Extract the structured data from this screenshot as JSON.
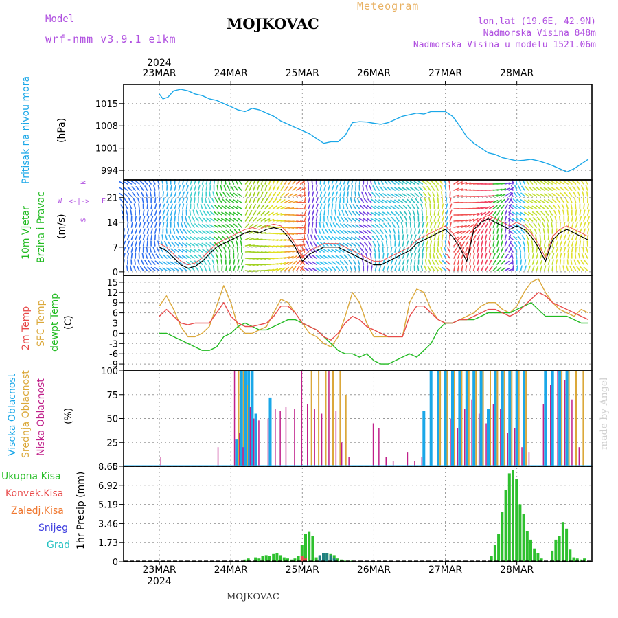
{
  "header": {
    "model_label": "Model",
    "model_name": "wrf-nmm_v3.9.1  e1km",
    "station": "MOJKOVAC",
    "meteogram_label": "Meteogram",
    "lonlat": "lon,lat (19.6E, 42.9N)",
    "elevation": "Nadmorska Visina 848m",
    "model_elevation": "Nadmorska Visina u modelu 1521.06m",
    "footer_station": "MOJKOVAC",
    "credit": "made by Angel"
  },
  "colors": {
    "pressure": "#1aa7e8",
    "wind_label": "#22bb22",
    "wind_dir_label": "#b050e0",
    "temp2m": "#e84a4a",
    "sfc_temp": "#dba83a",
    "dewpoint": "#22bb22",
    "high_cloud": "#1aa7e8",
    "mid_cloud": "#dba83a",
    "low_cloud": "#c0208a",
    "total_precip": "#2ec02e",
    "conv_precip": "#e84a4a",
    "freezing_precip": "#f07830",
    "snow": "#4040e0",
    "graupel": "#20c0c0",
    "header_purple": "#b050e0",
    "header_orange": "#e8b060"
  },
  "chart_data": [
    {
      "type": "line",
      "panel": "pressure",
      "ylabel": "Pritisak na nivou mora",
      "unit": "(hPa)",
      "yticks": [
        994,
        1001,
        1008,
        1015
      ],
      "ylim": [
        991,
        1021
      ],
      "x_days": [
        0,
        0.05,
        0.12,
        0.2,
        0.3,
        0.4,
        0.5,
        0.6,
        0.7,
        0.8,
        0.9,
        1.0,
        1.1,
        1.2,
        1.3,
        1.4,
        1.5,
        1.6,
        1.7,
        1.8,
        1.9,
        2.0,
        2.1,
        2.2,
        2.3,
        2.4,
        2.5,
        2.6,
        2.7,
        2.8,
        2.9,
        3.0,
        3.1,
        3.2,
        3.3,
        3.4,
        3.5,
        3.6,
        3.7,
        3.8,
        3.9,
        4.0,
        4.1,
        4.2,
        4.3,
        4.4,
        4.5,
        4.6,
        4.7,
        4.8,
        4.9,
        5.0,
        5.1,
        5.2,
        5.3,
        5.4,
        5.5,
        5.6,
        5.7,
        5.8,
        5.9,
        6.0
      ],
      "series": [
        {
          "values": [
            1018,
            1016.5,
            1017,
            1019,
            1019.5,
            1019,
            1018,
            1017.5,
            1016.5,
            1016,
            1015,
            1014,
            1013,
            1012.5,
            1013.5,
            1013,
            1012,
            1011,
            1009.5,
            1008.5,
            1007.5,
            1006.5,
            1005.5,
            1004,
            1002.5,
            1003,
            1003,
            1005,
            1009,
            1009.3,
            1009.2,
            1008.8,
            1008.5,
            1009,
            1010,
            1011,
            1011.5,
            1012,
            1011.7,
            1012.5,
            1012.5,
            1012.5,
            1011,
            1008,
            1004.5,
            1002.5,
            1001,
            999.5,
            999,
            998,
            997.5,
            997,
            997.2,
            997.5,
            997,
            996.3,
            995.5,
            994.5,
            993.5,
            994.5,
            996,
            997.5
          ]
        }
      ]
    },
    {
      "type": "line",
      "panel": "wind",
      "ylabel_lines": [
        "10m Vjetar",
        "Brzina i Pravac"
      ],
      "unit": "(m/s)",
      "direction_key": {
        "n": "N",
        "s": "S",
        "w": "W",
        "e": "E"
      },
      "yticks": [
        0,
        7,
        14,
        21
      ],
      "ylim": [
        -1,
        26
      ],
      "x_days": [
        0,
        0.1,
        0.2,
        0.3,
        0.4,
        0.5,
        0.6,
        0.7,
        0.8,
        0.9,
        1.0,
        1.1,
        1.2,
        1.3,
        1.4,
        1.5,
        1.6,
        1.7,
        1.8,
        1.9,
        2.0,
        2.1,
        2.2,
        2.3,
        2.4,
        2.5,
        2.6,
        2.7,
        2.8,
        2.9,
        3.0,
        3.1,
        3.2,
        3.3,
        3.4,
        3.5,
        3.6,
        3.7,
        3.8,
        3.9,
        4.0,
        4.1,
        4.2,
        4.3,
        4.4,
        4.5,
        4.6,
        4.7,
        4.8,
        4.9,
        5.0,
        5.1,
        5.2,
        5.3,
        5.4,
        5.5,
        5.6,
        5.7,
        5.8,
        5.9,
        6.0
      ],
      "series": [
        {
          "name": "speed",
          "values": [
            7,
            6,
            4,
            2,
            1,
            1.5,
            3,
            5,
            7,
            8,
            9,
            10,
            11,
            11.5,
            11,
            12,
            12.5,
            12,
            10,
            7,
            3,
            5,
            6,
            7,
            7,
            7,
            6,
            5,
            4,
            3,
            2,
            2,
            3,
            4,
            5,
            6,
            8,
            9,
            10,
            11,
            12,
            10,
            7,
            3,
            12,
            14,
            15,
            14,
            13,
            12,
            13,
            12,
            10,
            7,
            3,
            9,
            11,
            12,
            11,
            10,
            9
          ]
        },
        {
          "name": "gust",
          "values": [
            8,
            7,
            5,
            3,
            2,
            2.5,
            4,
            6,
            8,
            9,
            10,
            11,
            12,
            12.5,
            12,
            13,
            13.5,
            13,
            11,
            8,
            4,
            6,
            7,
            8,
            8,
            8,
            7,
            6,
            5,
            4,
            3,
            3,
            4,
            5,
            6,
            7,
            9,
            10,
            11,
            12,
            13,
            11,
            8,
            4,
            13,
            15,
            16,
            15,
            14,
            13,
            14,
            13,
            11,
            8,
            4,
            10,
            12,
            13,
            12,
            11,
            10
          ]
        }
      ]
    },
    {
      "type": "line",
      "panel": "temperature",
      "ylabels": [
        "2m Temp",
        "SFC Temp",
        "dewpt Temp"
      ],
      "unit": "(C)",
      "yticks": [
        -9,
        -6,
        -3,
        0,
        3,
        6,
        9,
        12,
        15
      ],
      "ylim": [
        -11,
        17
      ],
      "x_days": [
        0,
        0.1,
        0.2,
        0.3,
        0.4,
        0.5,
        0.6,
        0.7,
        0.8,
        0.9,
        1.0,
        1.1,
        1.2,
        1.3,
        1.4,
        1.5,
        1.6,
        1.7,
        1.8,
        1.9,
        2.0,
        2.1,
        2.2,
        2.3,
        2.4,
        2.5,
        2.6,
        2.7,
        2.8,
        2.9,
        3.0,
        3.1,
        3.2,
        3.3,
        3.4,
        3.5,
        3.6,
        3.7,
        3.8,
        3.9,
        4.0,
        4.1,
        4.2,
        4.3,
        4.4,
        4.5,
        4.6,
        4.7,
        4.8,
        4.9,
        5.0,
        5.1,
        5.2,
        5.3,
        5.4,
        5.5,
        5.6,
        5.7,
        5.8,
        5.9,
        6.0
      ],
      "series": [
        {
          "name": "2m Temp",
          "values": [
            5,
            7,
            5,
            3,
            2.5,
            3,
            3,
            3,
            6,
            9,
            5,
            3,
            2,
            2,
            2.5,
            3,
            5,
            8,
            8,
            6,
            3,
            2,
            1,
            -1,
            -2,
            0,
            3,
            5,
            4,
            2,
            1,
            0,
            -1,
            -1,
            -1,
            5,
            8,
            8,
            6,
            4,
            3,
            3,
            4,
            4,
            5,
            6,
            7,
            7,
            6,
            5,
            6,
            8,
            10,
            12,
            11,
            9,
            8,
            7,
            6,
            5,
            4
          ]
        },
        {
          "name": "SFC Temp",
          "values": [
            8,
            11,
            7,
            2,
            -1,
            -1,
            0,
            2,
            8,
            14,
            9,
            2,
            0,
            0,
            1,
            2,
            6,
            10,
            9,
            6,
            3,
            0,
            -1,
            -3,
            -4,
            -1,
            5,
            12,
            9,
            3,
            -1,
            -1,
            -1,
            -1,
            -1,
            9,
            13,
            12,
            7,
            4,
            3,
            3,
            4,
            5,
            6,
            8,
            9,
            9,
            7,
            6,
            8,
            12,
            15,
            16,
            12,
            9,
            7,
            6,
            5,
            7,
            6
          ]
        },
        {
          "name": "dewpt Temp",
          "values": [
            0,
            0,
            -1,
            -2,
            -3,
            -4,
            -5,
            -5,
            -4,
            -1,
            0,
            2,
            3,
            2,
            1,
            1,
            2,
            3,
            4,
            4,
            3,
            2,
            1,
            -1,
            -3,
            -5,
            -6,
            -6,
            -7,
            -6,
            -8,
            -9,
            -9,
            -8,
            -7,
            -6,
            -7,
            -5,
            -3,
            1,
            3,
            3,
            4,
            4,
            4,
            5,
            6,
            6,
            6,
            6,
            7,
            8,
            9,
            7,
            5,
            5,
            5,
            5,
            4,
            3,
            3
          ]
        }
      ]
    },
    {
      "type": "bar",
      "panel": "clouds",
      "ylabels": [
        "Visoka Oblacnost",
        "Srednja Oblacnost",
        "Niska Oblacnost"
      ],
      "unit": "(%)",
      "yticks": [
        0,
        25,
        50,
        75,
        100
      ],
      "ylim": [
        0,
        100
      ],
      "x_days": [
        0.05,
        0.45,
        0.85,
        1.08,
        1.15,
        1.2,
        1.25,
        1.3,
        1.35,
        1.42,
        1.55,
        1.65,
        1.72,
        1.8,
        1.92,
        2.02,
        2.1,
        2.2,
        2.3,
        2.4,
        2.5,
        2.58,
        2.68,
        2.78,
        2.88,
        2.95,
        3.02,
        3.1,
        3.2,
        3.3,
        3.4,
        3.5,
        3.6,
        3.7,
        3.8,
        3.9,
        4.0,
        4.1,
        4.2,
        4.3,
        4.4,
        4.5,
        4.6,
        4.7,
        4.8,
        4.9,
        5.0,
        5.1,
        5.2,
        5.3,
        5.4,
        5.5,
        5.6,
        5.7,
        5.8,
        5.9
      ],
      "series": [
        {
          "name": "Visoka Oblacnost",
          "values": [
            0,
            0,
            0,
            28,
            100,
            100,
            100,
            100,
            55,
            0,
            72,
            0,
            0,
            0,
            0,
            0,
            0,
            0,
            0,
            0,
            0,
            0,
            0,
            0,
            0,
            0,
            0,
            0,
            0,
            0,
            0,
            0,
            0,
            58,
            100,
            100,
            100,
            100,
            100,
            100,
            100,
            100,
            60,
            100,
            100,
            100,
            100,
            100,
            0,
            0,
            100,
            100,
            100,
            100,
            0,
            0
          ]
        },
        {
          "name": "Srednja Oblacnost",
          "values": [
            0,
            0,
            0,
            100,
            100,
            85,
            0,
            0,
            0,
            0,
            0,
            0,
            0,
            0,
            0,
            0,
            100,
            100,
            100,
            100,
            100,
            75,
            0,
            0,
            0,
            0,
            0,
            0,
            0,
            0,
            0,
            0,
            0,
            0,
            0,
            100,
            100,
            100,
            100,
            100,
            100,
            100,
            100,
            100,
            100,
            100,
            100,
            100,
            0,
            0,
            0,
            0,
            100,
            100,
            100,
            100
          ]
        },
        {
          "name": "Niska Oblacnost",
          "values": [
            10,
            0,
            20,
            100,
            35,
            20,
            0,
            62,
            50,
            48,
            50,
            60,
            58,
            62,
            60,
            100,
            65,
            60,
            55,
            100,
            58,
            25,
            10,
            0,
            0,
            0,
            45,
            40,
            10,
            5,
            0,
            15,
            5,
            10,
            0,
            0,
            0,
            50,
            40,
            60,
            70,
            55,
            45,
            65,
            60,
            35,
            40,
            20,
            15,
            0,
            65,
            85,
            100,
            90,
            70,
            20
          ]
        }
      ]
    },
    {
      "type": "bar",
      "panel": "precipitation",
      "ylabel": "1hr Precip (mm)",
      "legend": [
        "Ukupna Kisa",
        "Konvek.Kisa",
        "Zaledj.Kisa",
        "Snijeg",
        "Grad"
      ],
      "yticks": [
        0,
        1.73,
        3.46,
        5.19,
        6.92,
        8.65
      ],
      "ylim": [
        0,
        8.65
      ],
      "x_days": [
        1.2,
        1.25,
        1.35,
        1.4,
        1.45,
        1.5,
        1.55,
        1.6,
        1.65,
        1.7,
        1.75,
        1.8,
        1.85,
        1.9,
        1.95,
        2.0,
        2.05,
        2.1,
        2.15,
        2.2,
        2.25,
        2.3,
        2.35,
        2.4,
        2.45,
        2.5,
        2.55,
        2.6,
        2.65,
        2.7,
        4.65,
        4.7,
        4.75,
        4.8,
        4.85,
        4.9,
        4.95,
        5.0,
        5.05,
        5.1,
        5.15,
        5.2,
        5.25,
        5.3,
        5.35,
        5.5,
        5.55,
        5.6,
        5.65,
        5.7,
        5.75,
        5.8,
        5.85,
        5.9,
        5.95
      ],
      "series": [
        {
          "name": "Ukupna Kisa",
          "values": [
            0.2,
            0.3,
            0.4,
            0.3,
            0.5,
            0.6,
            0.5,
            0.7,
            0.8,
            0.6,
            0.4,
            0.3,
            0.2,
            0.3,
            0.5,
            1.5,
            2.5,
            2.7,
            2.3,
            0.4,
            0.5,
            0.5,
            0.8,
            0.7,
            0.6,
            0.3,
            0.2,
            0.1,
            0.1,
            0.1,
            0.5,
            1.5,
            2.5,
            4.5,
            6.5,
            8.0,
            8.3,
            7.5,
            5.2,
            4.3,
            2.8,
            2.0,
            1.2,
            0.8,
            0.3,
            1.0,
            2.0,
            2.3,
            3.6,
            3.0,
            1.1,
            0.4,
            0.3,
            0.2,
            0.3
          ]
        },
        {
          "name": "Konvek.Kisa",
          "values": [
            0,
            0,
            0,
            0,
            0,
            0,
            0,
            0,
            0,
            0,
            0,
            0,
            0,
            0,
            0,
            0.5,
            0.3,
            0,
            0,
            0,
            0,
            0,
            0,
            0,
            0,
            0,
            0,
            0,
            0,
            0,
            0,
            0,
            0,
            0,
            0,
            0,
            0,
            0,
            0,
            0,
            0,
            0,
            0,
            0,
            0,
            0,
            0,
            0,
            0,
            0,
            0,
            0,
            0,
            0,
            0
          ]
        },
        {
          "name": "Grad",
          "values": [
            0,
            0,
            0,
            0,
            0,
            0,
            0,
            0,
            0,
            0,
            0,
            0,
            0,
            0,
            0,
            0,
            0,
            0,
            0,
            0,
            0.6,
            0.8,
            0.8,
            0.6,
            0.3,
            0,
            0,
            0,
            0,
            0,
            0,
            0,
            0,
            0,
            0,
            0,
            0,
            0,
            0,
            0,
            0,
            0,
            0,
            0,
            0,
            0,
            0,
            0,
            0,
            0,
            0,
            0,
            0,
            0,
            0
          ]
        }
      ]
    }
  ],
  "time_axis": {
    "year": "2024",
    "day_labels": [
      "23MAR",
      "24MAR",
      "25MAR",
      "26MAR",
      "27MAR",
      "28MAR"
    ],
    "x_range_days": [
      -0.5,
      6.05
    ]
  }
}
